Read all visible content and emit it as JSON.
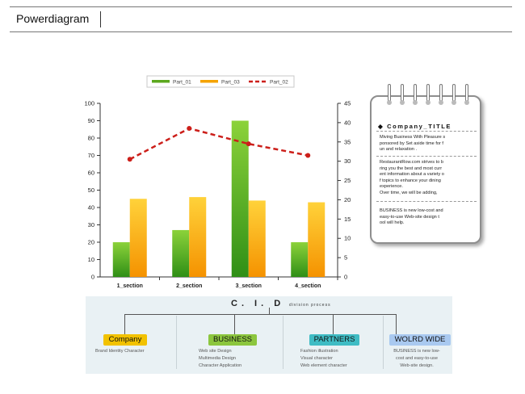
{
  "page": {
    "title": "Powerdiagram"
  },
  "chart_data": {
    "type": "bar",
    "categories": [
      "1_section",
      "2_section",
      "3_section",
      "4_section"
    ],
    "series": [
      {
        "name": "Part_01",
        "type": "bar",
        "axis": "left",
        "values": [
          20,
          27,
          90,
          20
        ],
        "color": "#5ca81e"
      },
      {
        "name": "Part_03",
        "type": "bar",
        "axis": "left",
        "values": [
          45,
          46,
          44,
          43
        ],
        "color": "#f5a300"
      },
      {
        "name": "Part_02",
        "type": "line",
        "axis": "right",
        "values": [
          30.5,
          38.5,
          34.5,
          31.5
        ],
        "color": "#cc1f1a",
        "dash": true
      }
    ],
    "left_axis": {
      "min": 0,
      "max": 100,
      "ticks": [
        0,
        10,
        20,
        30,
        40,
        50,
        60,
        70,
        80,
        90,
        100
      ]
    },
    "right_axis": {
      "min": 0,
      "max": 45,
      "ticks": [
        0,
        5,
        10,
        15,
        20,
        25,
        30,
        35,
        40,
        45
      ]
    },
    "legend_position": "top",
    "grid": false
  },
  "notepad": {
    "title": "Company_TITLE",
    "paragraphs": [
      [
        "Miving Business With Pleasure s",
        "ponsored by Set aside time for f",
        "un and relaxation ."
      ],
      [
        "RestaurantRow.com strives to b",
        "ring you the best and most curr",
        "ent information about a variety o",
        "f topics to enhance your dining",
        "experience.",
        "Over time, we will be adding,"
      ],
      [
        "BUSINESS is new low-cost and",
        "easy-to-use Web-site design t",
        "ool will help."
      ]
    ]
  },
  "cid": {
    "title": "C. I. D",
    "subtitle": "division process",
    "items": [
      {
        "label": "Company",
        "color": "#f2c200",
        "lines": [
          "Brand Identity Character"
        ]
      },
      {
        "label": "BUSINESS",
        "color": "#8cc63e",
        "lines": [
          "Web site Design",
          "Multimedia Design",
          "Character Application"
        ]
      },
      {
        "label": "PARTNERS",
        "color": "#3fbcc4",
        "lines": [
          "Fashion illustration",
          "Visual character",
          "Web element character"
        ]
      },
      {
        "label": "WOLRD WIDE",
        "color": "#a9c9f0",
        "lines": [
          "BUSINESS is new low-",
          "cost and easy-to-use",
          "Web-site design."
        ]
      }
    ]
  }
}
